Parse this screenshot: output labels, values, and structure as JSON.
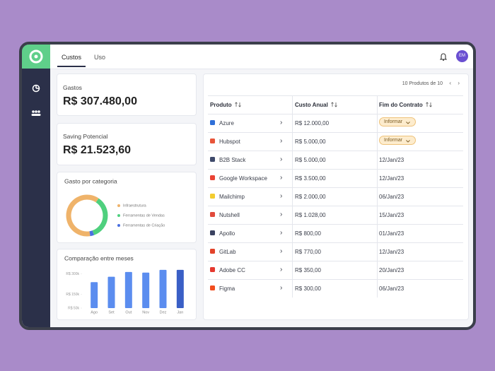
{
  "tabs": [
    "Custos",
    "Uso"
  ],
  "avatar": "EM",
  "cards": [
    {
      "label": "Gastos",
      "value": "R$ 307.480,00"
    },
    {
      "label": "Saving Potencial",
      "value": "R$ 21.523,60"
    }
  ],
  "donut": {
    "type": "pie",
    "title": "Gasto por categoria",
    "categories": [
      "Infraestrutura",
      "Ferramentas de Vendas",
      "Ferramentas de Criação"
    ],
    "values": [
      62,
      35,
      3
    ],
    "colors": [
      "#efb36a",
      "#4fd07e",
      "#4a6fe0"
    ]
  },
  "bar_chart": {
    "type": "bar",
    "title": "Comparação entre meses",
    "categories": [
      "Ago",
      "Set",
      "Out",
      "Nov",
      "Dez",
      "Jan"
    ],
    "values": [
      240000,
      280000,
      315000,
      310000,
      330000,
      330000
    ],
    "colors": [
      "#5b8def",
      "#5b8def",
      "#5b8def",
      "#5b8def",
      "#5b8def",
      "#3a5fc6"
    ],
    "ylim": [
      50000,
      340000
    ],
    "yticks": [
      {
        "value": 50000,
        "label": "R$ 50k"
      },
      {
        "value": 150000,
        "label": "R$ 150k"
      },
      {
        "value": 300000,
        "label": "R$ 300k"
      }
    ]
  },
  "table": {
    "pagination": "10 Produtos de 10",
    "columns": [
      "Produto",
      "Custo Anual",
      "Fim do Contrato"
    ],
    "rows": [
      {
        "product": "Azure",
        "cost": "R$ 12.000,00",
        "end": "Informar",
        "icon_color": "#2f6fd8"
      },
      {
        "product": "Hubspot",
        "cost": "R$ 5.000,00",
        "end": "Informar",
        "icon_color": "#e8553a"
      },
      {
        "product": "B2B Stack",
        "cost": "R$ 5.000,00",
        "end": "12/Jan/23",
        "icon_color": "#3f4a6b"
      },
      {
        "product": "Google Workspace",
        "cost": "R$ 3.500,00",
        "end": "12/Jan/23",
        "icon_color": "#ea4335"
      },
      {
        "product": "Mailchimp",
        "cost": "R$ 2.000,00",
        "end": "06/Jan/23",
        "icon_color": "#f3cc2f"
      },
      {
        "product": "Nutshell",
        "cost": "R$ 1.028,00",
        "end": "15/Jan/23",
        "icon_color": "#e14a3c"
      },
      {
        "product": "Apollo",
        "cost": "R$ 800,00",
        "end": "01/Jan/23",
        "icon_color": "#3a4260"
      },
      {
        "product": "GitLab",
        "cost": "R$ 770,00",
        "end": "12/Jan/23",
        "icon_color": "#e2432a"
      },
      {
        "product": "Adobe CC",
        "cost": "R$ 350,00",
        "end": "20/Jan/23",
        "icon_color": "#e5392f"
      },
      {
        "product": "Figma",
        "cost": "R$ 300,00",
        "end": "06/Jan/23",
        "icon_color": "#f24e1e"
      }
    ]
  }
}
